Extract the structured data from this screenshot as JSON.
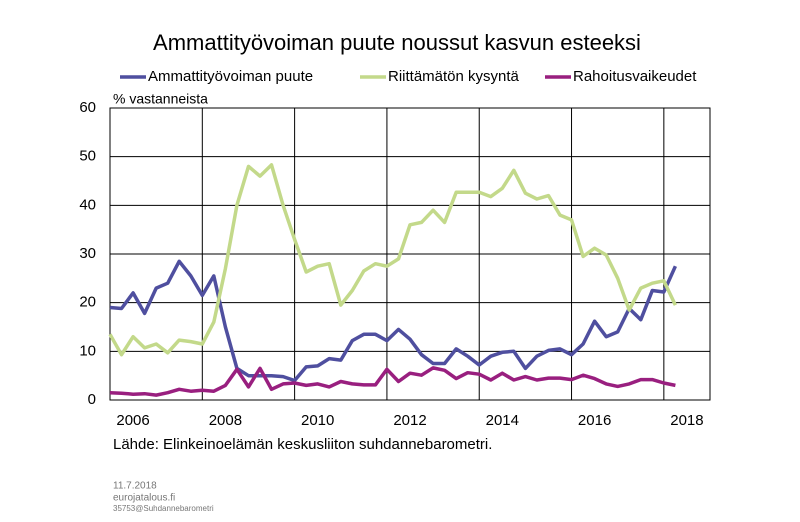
{
  "chart_data": {
    "type": "line",
    "title": "Ammattityövoiman puute noussut kasvun esteeksi",
    "y_label": "% vastanneista",
    "source": "Lähde: Elinkeinoelämän keskusliiton suhdannebarometri.",
    "footer": [
      "11.7.2018",
      "eurojatalous.fi",
      "35753@Suhdannebarometri"
    ],
    "x": [
      2006,
      2006.25,
      2006.5,
      2006.75,
      2007,
      2007.25,
      2007.5,
      2007.75,
      2008,
      2008.25,
      2008.5,
      2008.75,
      2009,
      2009.25,
      2009.5,
      2009.75,
      2010,
      2010.25,
      2010.5,
      2010.75,
      2011,
      2011.25,
      2011.5,
      2011.75,
      2012,
      2012.25,
      2012.5,
      2012.75,
      2013,
      2013.25,
      2013.5,
      2013.75,
      2014,
      2014.25,
      2014.5,
      2014.75,
      2015,
      2015.25,
      2015.5,
      2015.75,
      2016,
      2016.25,
      2016.5,
      2016.75,
      2017,
      2017.25,
      2017.5,
      2017.75,
      2018,
      2018.25
    ],
    "series": [
      {
        "name": "Ammattityövoiman puute",
        "color": "#4f4f9f",
        "values": [
          19,
          18.8,
          22,
          17.8,
          23,
          24,
          28.5,
          25.5,
          21.5,
          25.5,
          15,
          6.5,
          5,
          5,
          5,
          4.8,
          4,
          6.8,
          7,
          8.5,
          8.2,
          12.2,
          13.5,
          13.5,
          12.2,
          14.5,
          12.5,
          9.3,
          7.5,
          7.5,
          10.5,
          9,
          7.2,
          9,
          9.8,
          10,
          6.5,
          9,
          10.2,
          10.5,
          9.3,
          11.5,
          16.2,
          13,
          14,
          18.8,
          16.5,
          22.5,
          22.2,
          27.5
        ]
      },
      {
        "name": "Riittämätön kysyntä",
        "color": "#c3d98a",
        "values": [
          13.5,
          9.3,
          13,
          10.7,
          11.5,
          9.7,
          12.3,
          12,
          11.5,
          16,
          27,
          40,
          48,
          46,
          48.3,
          40,
          33,
          26.3,
          27.5,
          28,
          19.5,
          22.5,
          26.5,
          28,
          27.5,
          29,
          36,
          36.5,
          39,
          36.5,
          42.7,
          42.7,
          42.7,
          41.8,
          43.5,
          47.2,
          42.5,
          41.3,
          42,
          38,
          37,
          29.5,
          31.2,
          29.8,
          25,
          18.5,
          23,
          24,
          24.5,
          19.5
        ]
      },
      {
        "name": "Rahoitusvaikeudet",
        "color": "#991f7f",
        "values": [
          1.5,
          1.4,
          1.2,
          1.3,
          1,
          1.5,
          2.2,
          1.8,
          2,
          1.8,
          3,
          6.3,
          2.7,
          6.5,
          2.2,
          3.3,
          3.5,
          3,
          3.3,
          2.7,
          3.8,
          3.3,
          3.1,
          3.1,
          6.3,
          3.8,
          5.5,
          5.1,
          6.6,
          6.1,
          4.4,
          5.6,
          5.3,
          4.1,
          5.5,
          4.1,
          4.8,
          4.1,
          4.5,
          4.5,
          4.2,
          5.1,
          4.4,
          3.3,
          2.8,
          3.3,
          4.2,
          4.2,
          3.5,
          3
        ]
      }
    ],
    "xlim": [
      2006,
      2019
    ],
    "xticks": [
      2006,
      2008,
      2010,
      2012,
      2014,
      2016,
      2018
    ],
    "ylim": [
      0,
      60
    ],
    "yticks": [
      0,
      10,
      20,
      30,
      40,
      50,
      60
    ],
    "grid": true
  }
}
